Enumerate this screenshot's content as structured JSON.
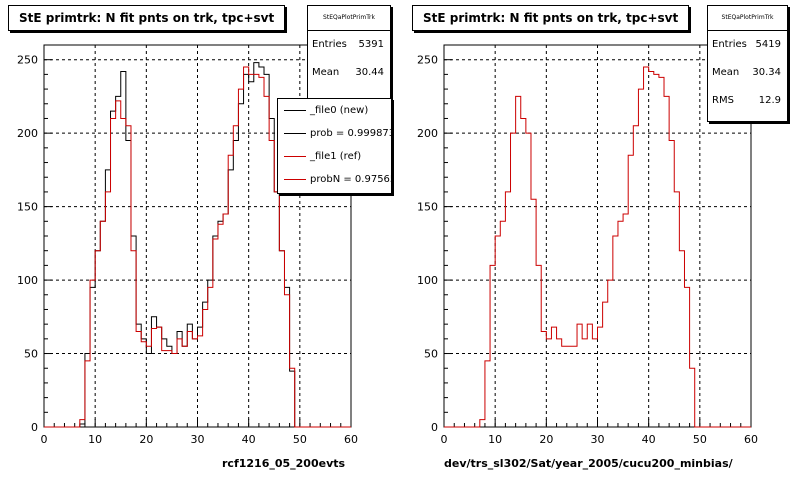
{
  "chart_data": [
    {
      "type": "step-histogram",
      "title": "StE primtrk: N fit pnts on trk, tpc+svt",
      "xlabel": "rcf1216_05_200evts",
      "ylabel": "",
      "xlim": [
        0,
        60
      ],
      "ylim": [
        0,
        260
      ],
      "x_ticks": [
        0,
        10,
        20,
        30,
        40,
        50,
        60
      ],
      "y_ticks": [
        0,
        50,
        100,
        150,
        200,
        250
      ],
      "grid": true,
      "bin_edges_start": 0,
      "bin_width": 1,
      "stats": {
        "header": "StEQaPlotPrimTrk",
        "entries_label": "Entries",
        "entries": "5391",
        "mean_label": "Mean",
        "mean": "30.44"
      },
      "legend": {
        "position": "right",
        "entries": [
          "_file0 (new)",
          "prob = 0.999873",
          "_file1 (ref)",
          "probN = 0.97565"
        ]
      },
      "series": [
        {
          "name": "_file0 (new)",
          "color": "#000000",
          "values": [
            0,
            0,
            0,
            0,
            0,
            0,
            0,
            2,
            50,
            95,
            120,
            140,
            175,
            215,
            225,
            242,
            195,
            130,
            70,
            60,
            50,
            75,
            68,
            60,
            55,
            50,
            65,
            55,
            70,
            60,
            68,
            85,
            100,
            130,
            140,
            145,
            175,
            195,
            220,
            240,
            235,
            248,
            245,
            240,
            210,
            160,
            120,
            95,
            38,
            0,
            0,
            0,
            0,
            0,
            0,
            0,
            0,
            0,
            0,
            0
          ]
        },
        {
          "name": "_file1 (ref)",
          "color": "#cc0000",
          "values": [
            0,
            0,
            0,
            0,
            0,
            0,
            0,
            5,
            45,
            100,
            120,
            140,
            160,
            210,
            222,
            210,
            205,
            120,
            65,
            58,
            55,
            67,
            68,
            52,
            52,
            50,
            60,
            55,
            65,
            60,
            62,
            80,
            95,
            128,
            138,
            145,
            185,
            205,
            230,
            245,
            240,
            240,
            238,
            225,
            195,
            160,
            120,
            90,
            40,
            0,
            0,
            0,
            0,
            0,
            0,
            0,
            0,
            0,
            0,
            0
          ]
        }
      ]
    },
    {
      "type": "step-histogram",
      "title": "StE primtrk: N fit pnts on trk, tpc+svt",
      "xlabel": "dev/trs_sl302/Sat/year_2005/cucu200_minbias/",
      "ylabel": "",
      "xlim": [
        0,
        60
      ],
      "ylim": [
        0,
        260
      ],
      "x_ticks": [
        0,
        10,
        20,
        30,
        40,
        50,
        60
      ],
      "y_ticks": [
        0,
        50,
        100,
        150,
        200,
        250
      ],
      "grid": true,
      "bin_edges_start": 0,
      "bin_width": 1,
      "stats": {
        "header": "StEQaPlotPrimTrk",
        "entries_label": "Entries",
        "entries": "5419",
        "mean_label": "Mean",
        "mean": "30.34",
        "rms_label": "RMS",
        "rms": "12.9"
      },
      "series": [
        {
          "name": "",
          "color": "#cc0000",
          "values": [
            0,
            0,
            0,
            0,
            0,
            0,
            0,
            5,
            45,
            110,
            130,
            140,
            160,
            200,
            225,
            210,
            200,
            155,
            110,
            65,
            60,
            68,
            60,
            55,
            55,
            55,
            70,
            60,
            70,
            60,
            68,
            85,
            100,
            130,
            140,
            145,
            185,
            205,
            230,
            245,
            242,
            240,
            238,
            225,
            195,
            160,
            120,
            95,
            40,
            0,
            0,
            0,
            0,
            0,
            0,
            0,
            0,
            0,
            0,
            0
          ]
        }
      ]
    }
  ]
}
